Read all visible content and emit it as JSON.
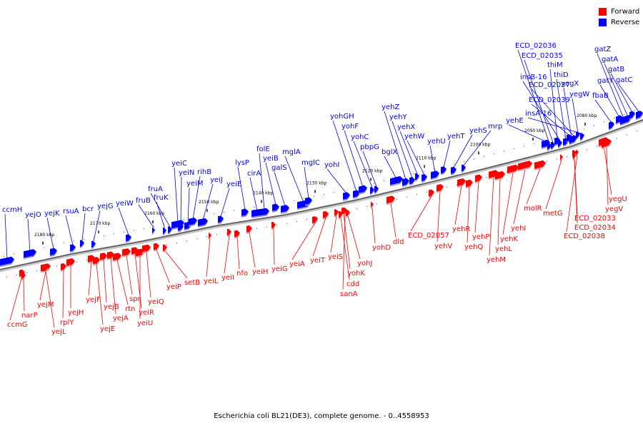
{
  "legend": {
    "forward_label": "Forward",
    "reverse_label": "Reverse",
    "forward_color": "#ff0000",
    "reverse_color": "#0000ff"
  },
  "caption": "Escherichia coli BL21(DE3), complete genome. - 0..4558953",
  "ticks": [
    {
      "label": "2180 kbp"
    },
    {
      "label": "2170 kbp"
    },
    {
      "label": "2160 kbp"
    },
    {
      "label": "2150 kbp"
    },
    {
      "label": "2140 kbp"
    },
    {
      "label": "2130 kbp"
    },
    {
      "label": "2120 kbp"
    },
    {
      "label": "2110 kbp"
    },
    {
      "label": "2100 kbp"
    },
    {
      "label": "2090 kbp"
    },
    {
      "label": "2080 kbp"
    }
  ],
  "reverse_genes": [
    "ccmH",
    "yejO",
    "yejK",
    "rsuA",
    "bcr",
    "yejG",
    "yeiW",
    "fruB",
    "fruK",
    "fruA",
    "yeiC",
    "yeiN",
    "yeiM",
    "rihB",
    "yeiJ",
    "yeiE",
    "lysP",
    "cirA",
    "folE",
    "yeiB",
    "galS",
    "mglA",
    "mglC",
    "yohI",
    "yohGH",
    "yohF",
    "yohC",
    "pbpG",
    "bglX",
    "yehZ",
    "yehY",
    "yehX",
    "yehW",
    "yehU",
    "yehT",
    "yehS",
    "mrp",
    "yehE",
    "ECD_02036",
    "ECD_02035",
    "thiM",
    "insB-16",
    "thiD",
    "ECD_02039",
    "yegX",
    "ECD_02037",
    "yegW",
    "insA-16",
    "fbaB",
    "gatY",
    "gatZ",
    "gatA",
    "gatB",
    "gatC"
  ],
  "forward_genes": [
    "ccmG",
    "narP",
    "yejM",
    "yejL",
    "rplY",
    "yejH",
    "yejF",
    "yejE",
    "yejB",
    "yejA",
    "rtn",
    "spr",
    "yeiR",
    "yeiU",
    "yeiQ",
    "yeiP",
    "setB",
    "yeiL",
    "yeiI",
    "nfo",
    "yeiH",
    "yeiG",
    "yeiA",
    "yeiT",
    "yeiS",
    "cdd",
    "yohK",
    "sanA",
    "yohJ",
    "yohD",
    "dld",
    "ECD_02057",
    "yehV",
    "yehR",
    "yehQ",
    "yehP",
    "yehM",
    "yehL",
    "yehK",
    "yehI",
    "molR",
    "metG",
    "ECD_02033",
    "ECD_02034",
    "ECD_02038",
    "yegU",
    "yegV"
  ]
}
